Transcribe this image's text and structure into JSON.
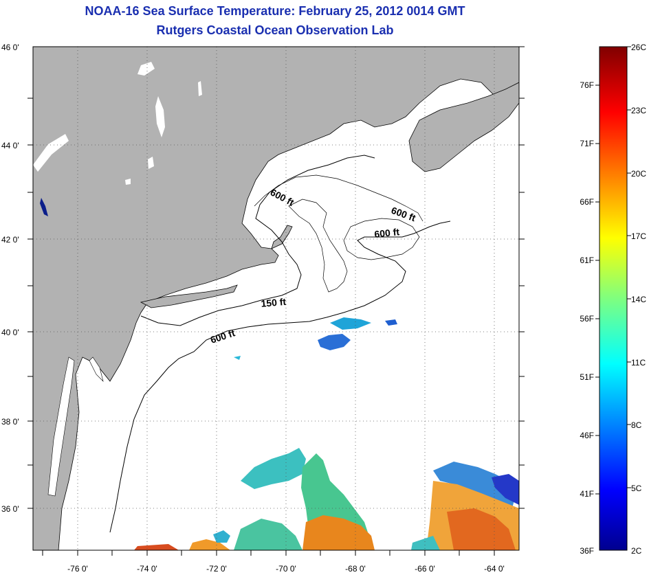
{
  "title": {
    "line1": "NOAA-16 Sea Surface Temperature:  February 25, 2012 0014 GMT",
    "line2": "Rutgers Coastal Ocean Observation Lab"
  },
  "map": {
    "lon_range": [
      -77,
      -63
    ],
    "lat_range": [
      35,
      46
    ],
    "lon_ticks": [
      "-76 0'",
      "-74 0'",
      "-72 0'",
      "-70 0'",
      "-68 0'",
      "-66 0'",
      "-64 0'"
    ],
    "lat_ticks": [
      "46 0'",
      "44 0'",
      "42 0'",
      "40 0'",
      "38 0'",
      "36 0'"
    ],
    "grid": true,
    "land_color": "#b2b2b2",
    "ocean_color": "#ffffff"
  },
  "contours": [
    {
      "label": "600 ft"
    },
    {
      "label": "600 ft"
    },
    {
      "label": "600 ft"
    },
    {
      "label": "150 ft"
    },
    {
      "label": "600 ft"
    }
  ],
  "colorbar": {
    "fahrenheit": [
      "76F",
      "71F",
      "66F",
      "61F",
      "56F",
      "51F",
      "46F",
      "41F",
      "36F"
    ],
    "celsius": [
      "26C",
      "23C",
      "20C",
      "17C",
      "14C",
      "11C",
      "8C",
      "5C",
      "2C"
    ],
    "min_c": 2,
    "max_c": 26
  }
}
